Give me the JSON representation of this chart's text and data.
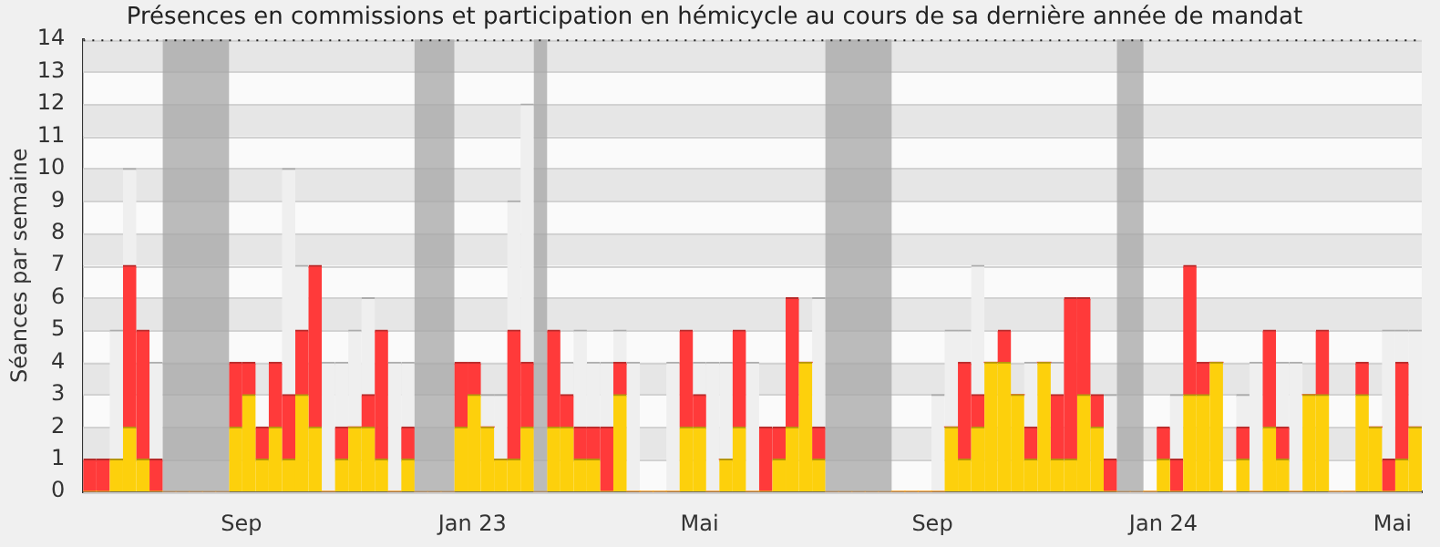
{
  "chart_data": {
    "type": "bar",
    "title": "Présences en commissions et participation en hémicycle au cours de sa dernière année de mandat",
    "ylabel": "Séances par semaine",
    "stacked": true,
    "grid": "y",
    "x": [
      "2022-06-13",
      "2022-06-20",
      "2022-06-27",
      "2022-07-04",
      "2022-07-11",
      "2022-07-18",
      "2022-07-25",
      "2022-08-01",
      "2022-08-08",
      "2022-08-15",
      "2022-08-22",
      "2022-08-29",
      "2022-09-05",
      "2022-09-12",
      "2022-09-19",
      "2022-09-26",
      "2022-10-03",
      "2022-10-10",
      "2022-10-17",
      "2022-10-24",
      "2022-10-31",
      "2022-11-07",
      "2022-11-14",
      "2022-11-21",
      "2022-11-28",
      "2022-12-05",
      "2022-12-12",
      "2022-12-19",
      "2022-12-26",
      "2023-01-02",
      "2023-01-09",
      "2023-01-16",
      "2023-01-23",
      "2023-01-30",
      "2023-02-06",
      "2023-02-13",
      "2023-02-20",
      "2023-02-27",
      "2023-03-06",
      "2023-03-13",
      "2023-03-20",
      "2023-03-27",
      "2023-04-03",
      "2023-04-10",
      "2023-04-17",
      "2023-04-24",
      "2023-05-01",
      "2023-05-08",
      "2023-05-15",
      "2023-05-22",
      "2023-05-29",
      "2023-06-05",
      "2023-06-12",
      "2023-06-19",
      "2023-06-26",
      "2023-07-03",
      "2023-07-10",
      "2023-07-17",
      "2023-07-24",
      "2023-07-31",
      "2023-08-07",
      "2023-08-14",
      "2023-08-21",
      "2023-08-28",
      "2023-09-04",
      "2023-09-11",
      "2023-09-18",
      "2023-09-25",
      "2023-10-02",
      "2023-10-09",
      "2023-10-16",
      "2023-10-23",
      "2023-10-30",
      "2023-11-06",
      "2023-11-13",
      "2023-11-20",
      "2023-11-27",
      "2023-12-04",
      "2023-12-11",
      "2023-12-18",
      "2023-12-25",
      "2024-01-01",
      "2024-01-08",
      "2024-01-15",
      "2024-01-22",
      "2024-01-29",
      "2024-02-05",
      "2024-02-12",
      "2024-02-19",
      "2024-02-26",
      "2024-03-04",
      "2024-03-11",
      "2024-03-18",
      "2024-03-25",
      "2024-04-01",
      "2024-04-08",
      "2024-04-15",
      "2024-04-22",
      "2024-04-29",
      "2024-05-06",
      "2024-05-13"
    ],
    "series": [
      {
        "color": "#fdd00c",
        "values": [
          0,
          0,
          1,
          2,
          1,
          0,
          0,
          0,
          0,
          0,
          0,
          2,
          3,
          1,
          2,
          1,
          3,
          2,
          0,
          1,
          2,
          2,
          1,
          0,
          1,
          0,
          0,
          0,
          2,
          3,
          2,
          1,
          1,
          2,
          0,
          2,
          2,
          1,
          1,
          0,
          3,
          0,
          0,
          0,
          0,
          2,
          2,
          0,
          1,
          2,
          0,
          0,
          1,
          2,
          4,
          1,
          0,
          0,
          0,
          0,
          0,
          0,
          0,
          0,
          0,
          2,
          1,
          2,
          4,
          4,
          3,
          1,
          4,
          1,
          1,
          3,
          2,
          0,
          0,
          0,
          0,
          1,
          0,
          3,
          3,
          4,
          0,
          1,
          0,
          2,
          1,
          0,
          3,
          3,
          0,
          0,
          3,
          2,
          0,
          1,
          2
        ]
      },
      {
        "color": "#ff3a3a",
        "values": [
          1,
          1,
          0,
          5,
          4,
          1,
          0,
          0,
          0,
          0,
          0,
          2,
          1,
          1,
          2,
          2,
          2,
          5,
          0,
          1,
          0,
          1,
          4,
          0,
          1,
          0,
          0,
          0,
          2,
          1,
          0,
          0,
          4,
          2,
          0,
          3,
          1,
          1,
          1,
          2,
          1,
          0,
          0,
          0,
          0,
          3,
          1,
          0,
          0,
          3,
          0,
          2,
          1,
          4,
          0,
          1,
          0,
          0,
          0,
          0,
          0,
          0,
          0,
          0,
          0,
          0,
          3,
          1,
          0,
          1,
          0,
          1,
          0,
          2,
          5,
          3,
          1,
          1,
          0,
          0,
          0,
          1,
          1,
          4,
          1,
          0,
          0,
          1,
          0,
          3,
          1,
          0,
          0,
          2,
          0,
          0,
          1,
          0,
          1,
          3,
          0
        ]
      },
      {
        "color": "#efefef",
        "values": [
          0,
          0,
          4,
          3,
          0,
          3,
          0,
          0,
          0,
          0,
          0,
          0,
          0,
          0,
          0,
          7,
          2,
          0,
          4,
          2,
          3,
          3,
          0,
          4,
          2,
          0,
          0,
          0,
          0,
          0,
          1,
          2,
          4,
          8,
          0,
          0,
          1,
          3,
          2,
          2,
          1,
          4,
          0,
          0,
          4,
          0,
          1,
          4,
          3,
          0,
          4,
          0,
          0,
          0,
          0,
          4,
          0,
          0,
          0,
          0,
          0,
          0,
          0,
          0,
          3,
          3,
          1,
          4,
          0,
          0,
          0,
          2,
          0,
          1,
          0,
          0,
          0,
          2,
          0,
          0,
          0,
          0,
          2,
          0,
          0,
          0,
          0,
          1,
          4,
          0,
          2,
          4,
          0,
          0,
          0,
          0,
          0,
          0,
          4,
          1,
          3
        ]
      }
    ],
    "xlim": [
      "2022-06-09T12:00",
      "2024-05-16T12:00"
    ],
    "xticks": [
      {
        "value": "2022-09-01",
        "label": "Sep"
      },
      {
        "value": "2023-01-01",
        "label": "Jan 23"
      },
      {
        "value": "2023-05-01",
        "label": "Mai"
      },
      {
        "value": "2023-09-01",
        "label": "Sep"
      },
      {
        "value": "2024-01-01",
        "label": "Jan 24"
      },
      {
        "value": "2024-05-01",
        "label": "Mai"
      }
    ],
    "ylim": [
      0,
      14
    ],
    "yticks": [
      0,
      1,
      2,
      3,
      4,
      5,
      6,
      7,
      8,
      9,
      10,
      11,
      12,
      13,
      14
    ],
    "bands": [
      {
        "axis": "x",
        "from": "2022-07-21T12:00",
        "to": "2022-08-25T12:00",
        "color": "#a6a6a6"
      },
      {
        "axis": "x",
        "from": "2022-12-01T12:00",
        "to": "2022-12-22T12:00",
        "color": "#a6a6a6"
      },
      {
        "axis": "x",
        "from": "2023-02-02T12:00",
        "to": "2023-02-09T12:00",
        "color": "#a6a6a6"
      },
      {
        "axis": "x",
        "from": "2023-07-06T12:00",
        "to": "2023-08-10T12:00",
        "color": "#a6a6a6"
      },
      {
        "axis": "x",
        "from": "2023-12-07T12:00",
        "to": "2023-12-21T12:00",
        "color": "#a6a6a6"
      }
    ]
  }
}
